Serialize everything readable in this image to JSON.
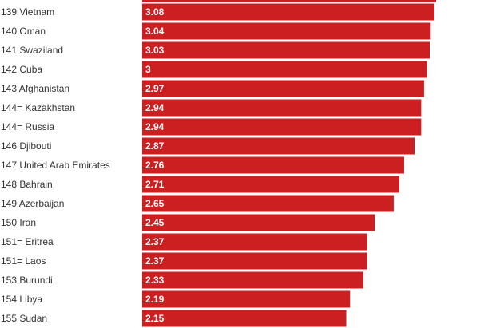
{
  "chart_data": {
    "type": "bar",
    "orientation": "horizontal",
    "bar_color": "#cc1f21",
    "value_label_color": "#ffffff",
    "row_label_color": "#333333",
    "categories": [
      "139 Vietnam",
      "140 Oman",
      "141 Swaziland",
      "142 Cuba",
      "143 Afghanistan",
      "144= Kazakhstan",
      "144= Russia",
      "146 Djibouti",
      "147 United Arab Emirates",
      "148 Bahrain",
      "149 Azerbaijan",
      "150 Iran",
      "151= Eritrea",
      "151= Laos",
      "153 Burundi",
      "154 Libya",
      "155 Sudan"
    ],
    "values": [
      3.08,
      3.04,
      3.03,
      3,
      2.97,
      2.94,
      2.94,
      2.87,
      2.76,
      2.71,
      2.65,
      2.45,
      2.37,
      2.37,
      2.33,
      2.19,
      2.15
    ],
    "value_labels": [
      "3.08",
      "3.04",
      "3.03",
      "3",
      "2.97",
      "2.94",
      "2.94",
      "2.87",
      "2.76",
      "2.71",
      "2.65",
      "2.45",
      "2.37",
      "2.37",
      "2.33",
      "2.19",
      "2.15"
    ],
    "xlim": [
      0,
      3.08
    ],
    "grid": false,
    "title": "",
    "xlabel": "",
    "ylabel": ""
  }
}
